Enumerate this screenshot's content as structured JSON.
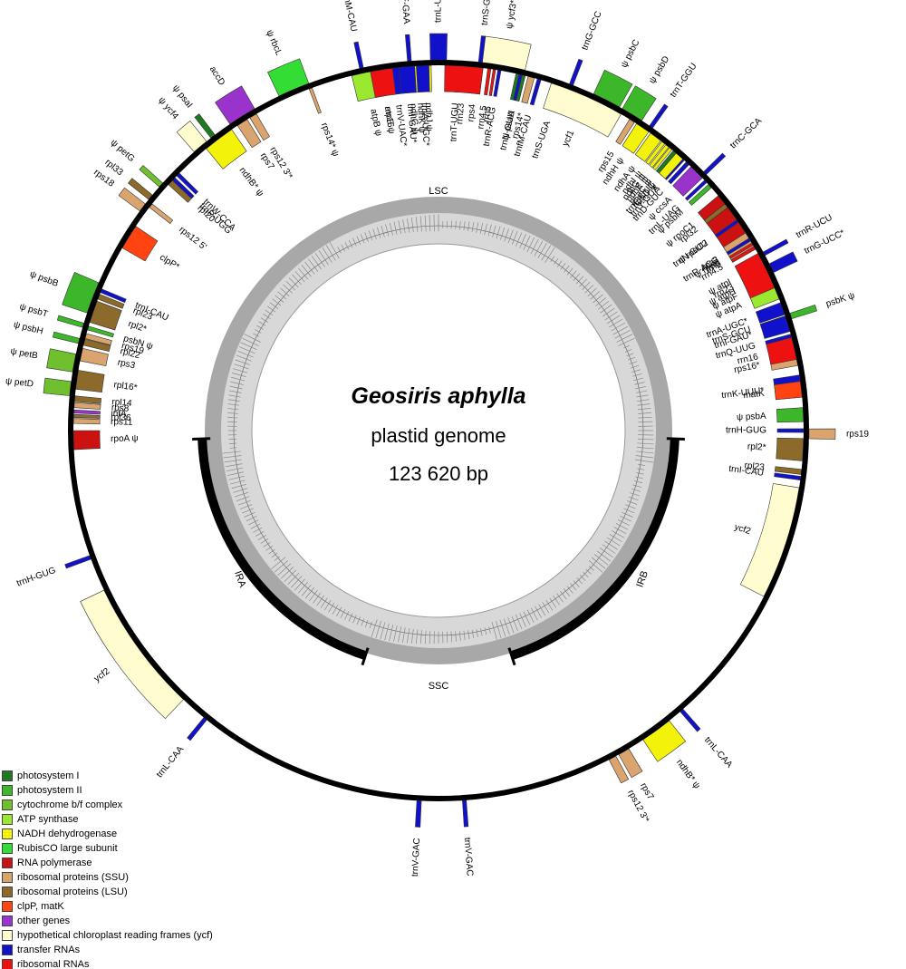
{
  "title": {
    "species": "Geosiris aphylla",
    "line2": "plastid genome",
    "line3": "123 620 bp"
  },
  "regions": {
    "lsc": "LSC",
    "ssc": "SSC",
    "ira": "IRA",
    "irb": "IRB"
  },
  "categories": [
    {
      "id": "ps1",
      "label": "photosystem I",
      "color": "#1f7a1f"
    },
    {
      "id": "ps2",
      "label": "photosystem II",
      "color": "#3cb72a"
    },
    {
      "id": "cyt",
      "label": "cytochrome b/f complex",
      "color": "#6fbf2e"
    },
    {
      "id": "atp",
      "label": "ATP synthase",
      "color": "#9be830"
    },
    {
      "id": "ndh",
      "label": "NADH dehydrogenase",
      "color": "#f2f20a"
    },
    {
      "id": "rbc",
      "label": "RubisCO large subunit",
      "color": "#33dd33"
    },
    {
      "id": "rpo",
      "label": "RNA polymerase",
      "color": "#cc1111"
    },
    {
      "id": "rps",
      "label": "ribosomal proteins (SSU)",
      "color": "#d9a46e"
    },
    {
      "id": "rpl",
      "label": "ribosomal proteins (LSU)",
      "color": "#8b6a2b"
    },
    {
      "id": "clp",
      "label": "clpP, matK",
      "color": "#ff4411"
    },
    {
      "id": "oth",
      "label": "other genes",
      "color": "#9933cc"
    },
    {
      "id": "ycf",
      "label": "hypothetical chloroplast reading frames (ycf)",
      "color": "#fffdd0"
    },
    {
      "id": "trn",
      "label": "transfer RNAs",
      "color": "#1111cc"
    },
    {
      "id": "rrn",
      "label": "ribosomal RNAs",
      "color": "#ee1111"
    }
  ],
  "genes": [
    {
      "name": "trnL-UAA*",
      "cat": "trn",
      "a": 0,
      "w": 2.5,
      "side": "out"
    },
    {
      "name": "trnF-GAA",
      "cat": "trn",
      "a": -4.5,
      "w": 0.6,
      "side": "out"
    },
    {
      "name": "trnM-CAU",
      "cat": "trn",
      "a": -12,
      "w": 0.6,
      "side": "out"
    },
    {
      "name": "ψ rbcL",
      "cat": "rbc",
      "a": -23,
      "w": 5,
      "side": "out"
    },
    {
      "name": "accD",
      "cat": "oth",
      "a": -32,
      "w": 4.5,
      "side": "out"
    },
    {
      "name": "ψ psaI",
      "cat": "ps1",
      "a": -37.5,
      "w": 0.8,
      "side": "out"
    },
    {
      "name": "ψ ycf4",
      "cat": "ycf",
      "a": -40,
      "w": 2.5,
      "side": "out"
    },
    {
      "name": "ψ petG",
      "cat": "cyt",
      "a": -48.5,
      "w": 0.8,
      "side": "out"
    },
    {
      "name": "rpl33",
      "cat": "rpl",
      "a": -51,
      "w": 0.9,
      "side": "out"
    },
    {
      "name": "rps18",
      "cat": "rps",
      "a": -53,
      "w": 1.4,
      "side": "out"
    },
    {
      "name": "ψ psbB",
      "cat": "ps2",
      "a": -69,
      "w": 5,
      "side": "out"
    },
    {
      "name": "ψ psbT",
      "cat": "ps2",
      "a": -73.5,
      "w": 0.7,
      "side": "out"
    },
    {
      "name": "ψ psbH",
      "cat": "ps2",
      "a": -76,
      "w": 0.8,
      "side": "out"
    },
    {
      "name": "ψ petB",
      "cat": "cyt",
      "a": -79.5,
      "w": 2.8,
      "side": "out"
    },
    {
      "name": "ψ petD",
      "cat": "cyt",
      "a": -83.5,
      "w": 2.2,
      "side": "out"
    },
    {
      "name": "trnH-GUG",
      "cat": "trn",
      "a": -110,
      "w": 0.6,
      "side": "out"
    },
    {
      "name": "ycf2",
      "cat": "ycf",
      "a": -126,
      "w": 21,
      "side": "out"
    },
    {
      "name": "trnL-CAA",
      "cat": "trn",
      "a": -141,
      "w": 0.6,
      "side": "out"
    },
    {
      "name": "trnV-GAC",
      "cat": "trn",
      "a": -177,
      "w": 0.7,
      "side": "out"
    },
    {
      "name": "ψ ycf3*",
      "cat": "ycf",
      "a": 10,
      "w": 7,
      "side": "out"
    },
    {
      "name": "trnS-GGA",
      "cat": "trn",
      "a": 6.5,
      "w": 0.6,
      "side": "out"
    },
    {
      "name": "trnG-GCC",
      "cat": "trn",
      "a": 21,
      "w": 0.6,
      "side": "out"
    },
    {
      "name": "ψ psbC",
      "cat": "ps2",
      "a": 27,
      "w": 4.5,
      "side": "out"
    },
    {
      "name": "ψ psbD",
      "cat": "ps2",
      "a": 31.5,
      "w": 3.5,
      "side": "out"
    },
    {
      "name": "trnT-GGU",
      "cat": "trn",
      "a": 35,
      "w": 0.6,
      "side": "out"
    },
    {
      "name": "trnC-GCA",
      "cat": "trn",
      "a": 46,
      "w": 0.6,
      "side": "out"
    },
    {
      "name": "trnR-UCU",
      "cat": "trn",
      "a": 61.5,
      "w": 0.6,
      "side": "out"
    },
    {
      "name": "trnG-UCC*",
      "cat": "trn",
      "a": 64,
      "w": 1.5,
      "side": "out"
    },
    {
      "name": "psbK ψ",
      "cat": "ps2",
      "a": 72,
      "w": 0.9,
      "side": "out"
    },
    {
      "name": "rps19",
      "cat": "rps",
      "a": 90.5,
      "w": 1.5,
      "side": "out"
    },
    {
      "name": "trnL-CAA",
      "cat": "trn",
      "a": 139,
      "w": 0.6,
      "side": "out"
    },
    {
      "name": "ndhB* ψ",
      "cat": "ndh",
      "a": 144,
      "w": 5,
      "side": "out"
    },
    {
      "name": "rps7",
      "cat": "rps",
      "a": 150,
      "w": 1.8,
      "side": "out"
    },
    {
      "name": "rps12 3'*",
      "cat": "rps",
      "a": 152,
      "w": 1.2,
      "side": "out"
    },
    {
      "name": "trnV-GAC",
      "cat": "trn",
      "a": 176,
      "w": 0.6,
      "side": "out"
    },
    {
      "name": "trnT-UGU",
      "cat": "trn",
      "a": 3,
      "w": 0.6,
      "side": "in"
    },
    {
      "name": "rps4",
      "cat": "rps",
      "a": 6,
      "w": 2,
      "side": "in"
    },
    {
      "name": "atpB ψ",
      "cat": "atp",
      "a": -11.5,
      "w": 4.5,
      "side": "in"
    },
    {
      "name": "atpE ψ",
      "cat": "atp",
      "a": -9,
      "w": 1.5,
      "side": "in"
    },
    {
      "name": "trnV-UAC*",
      "cat": "trn",
      "a": -7,
      "w": 1.5,
      "side": "in"
    },
    {
      "name": "ndhC ψ",
      "cat": "ndh",
      "a": -4.5,
      "w": 1.3,
      "side": "in"
    },
    {
      "name": "ndhK ψ",
      "cat": "ndh",
      "a": -3.2,
      "w": 1.3,
      "side": "in"
    },
    {
      "name": "ndhJ ψ",
      "cat": "ndh",
      "a": -1.8,
      "w": 1.3,
      "side": "in"
    },
    {
      "name": "rps14* ψ",
      "cat": "rps",
      "a": -20.5,
      "w": 0.5,
      "side": "in"
    },
    {
      "name": "ψ psaA",
      "cat": "ps1",
      "a": 13,
      "w": 1.5,
      "side": "in"
    },
    {
      "name": "rps14*",
      "cat": "rps",
      "a": 14.7,
      "w": 1,
      "side": "in"
    },
    {
      "name": "trnfM-CAU",
      "cat": "trn",
      "a": 16,
      "w": 0.6,
      "side": "in"
    },
    {
      "name": "trnS-UGA",
      "cat": "trn",
      "a": 19.5,
      "w": 0.6,
      "side": "in"
    },
    {
      "name": "ψ rpoB",
      "cat": "rpo",
      "a": 59,
      "w": 2,
      "side": "in"
    },
    {
      "name": "ψ rpoC2",
      "cat": "rpo",
      "a": 55,
      "w": 5.5,
      "side": "in"
    },
    {
      "name": "ψ rpoC1",
      "cat": "rpo",
      "a": 51,
      "w": 2,
      "side": "in"
    },
    {
      "name": "trnE-UUC",
      "cat": "trn",
      "a": 41,
      "w": 0.6,
      "side": "in"
    },
    {
      "name": "trnY-GUA",
      "cat": "trn",
      "a": 42,
      "w": 0.6,
      "side": "in"
    },
    {
      "name": "trnD-GUC",
      "cat": "trn",
      "a": 43,
      "w": 0.6,
      "side": "in"
    },
    {
      "name": "ψ psbM",
      "cat": "ps2",
      "a": 48,
      "w": 0.7,
      "side": "in"
    },
    {
      "name": "rps2",
      "cat": "rps",
      "a": 58.5,
      "w": 2.5,
      "side": "in"
    },
    {
      "name": "ψ atpI",
      "cat": "atp",
      "a": 63,
      "w": 3,
      "side": "in"
    },
    {
      "name": "ψ atpH",
      "cat": "atp",
      "a": 64.8,
      "w": 0.8,
      "side": "in"
    },
    {
      "name": "ψ atpF",
      "cat": "atp",
      "a": 65.8,
      "w": 1.2,
      "side": "in"
    },
    {
      "name": "ψ atpA",
      "cat": "atp",
      "a": 67.5,
      "w": 2.8,
      "side": "in"
    },
    {
      "name": "trnS-GCU",
      "cat": "trn",
      "a": 72,
      "w": 0.6,
      "side": "in"
    },
    {
      "name": "trnQ-UUG",
      "cat": "trn",
      "a": 75,
      "w": 0.6,
      "side": "in"
    },
    {
      "name": "rps16*",
      "cat": "rps",
      "a": 78.5,
      "w": 2.5,
      "side": "in"
    },
    {
      "name": "trnK-UUU*",
      "cat": "trn",
      "a": 83,
      "w": 3.5,
      "side": "in"
    },
    {
      "name": "matK",
      "cat": "clp",
      "a": 83.5,
      "w": 2.5,
      "side": "in"
    },
    {
      "name": "ψ psbA",
      "cat": "ps2",
      "a": 87.5,
      "w": 2.2,
      "side": "in"
    },
    {
      "name": "trnH-GUG",
      "cat": "trn",
      "a": 90,
      "w": 0.6,
      "side": "in"
    },
    {
      "name": "rpl2*",
      "cat": "rpl",
      "a": 93,
      "w": 3.5,
      "side": "in"
    },
    {
      "name": "rpl23",
      "cat": "rpl",
      "a": 96.5,
      "w": 0.8,
      "side": "in"
    },
    {
      "name": "trnI-CAU",
      "cat": "trn",
      "a": 97.5,
      "w": 0.6,
      "side": "in"
    },
    {
      "name": "ycf2",
      "cat": "ycf",
      "a": 108,
      "w": 18,
      "side": "in"
    },
    {
      "name": "rpl20",
      "cat": "rpl",
      "a": -47,
      "w": 1.4,
      "side": "in"
    },
    {
      "name": "trnW-CCA",
      "cat": "trn",
      "a": -45.5,
      "w": 0.6,
      "side": "in"
    },
    {
      "name": "trnP-UGG",
      "cat": "trn",
      "a": -46.5,
      "w": 0.6,
      "side": "in"
    },
    {
      "name": "rps12 5'",
      "cat": "rps",
      "a": -52,
      "w": 0.7,
      "side": "in"
    },
    {
      "name": "clpP*",
      "cat": "clp",
      "a": -58,
      "w": 4,
      "side": "in"
    },
    {
      "name": "psbN ψ",
      "cat": "ps2",
      "a": -73.7,
      "w": 0.6,
      "side": "in"
    },
    {
      "name": "rpoA ψ",
      "cat": "rpo",
      "a": -91.5,
      "w": 3,
      "side": "in"
    },
    {
      "name": "rps11",
      "cat": "rps",
      "a": -88.5,
      "w": 0.8,
      "side": "in"
    },
    {
      "name": "rpl36",
      "cat": "rpl",
      "a": -87.7,
      "w": 0.5,
      "side": "in"
    },
    {
      "name": "infA",
      "cat": "oth",
      "a": -87,
      "w": 0.5,
      "side": "in"
    },
    {
      "name": "rps8",
      "cat": "rps",
      "a": -86,
      "w": 0.8,
      "side": "in"
    },
    {
      "name": "rpl14",
      "cat": "rpl",
      "a": -85,
      "w": 0.9,
      "side": "in"
    },
    {
      "name": "rpl16*",
      "cat": "rpl",
      "a": -82,
      "w": 3,
      "side": "in"
    },
    {
      "name": "rps3",
      "cat": "rps",
      "a": -78,
      "w": 2,
      "side": "in"
    },
    {
      "name": "rpl22",
      "cat": "rpl",
      "a": -76,
      "w": 1,
      "side": "in"
    },
    {
      "name": "rps19",
      "cat": "rps",
      "a": -75,
      "w": 0.8,
      "side": "in"
    },
    {
      "name": "rpl2*",
      "cat": "rpl",
      "a": -71,
      "w": 3.5,
      "side": "in"
    },
    {
      "name": "rpl23",
      "cat": "rpl",
      "a": -68.5,
      "w": 0.8,
      "side": "in"
    },
    {
      "name": "trnI-CAU",
      "cat": "trn",
      "a": -67.5,
      "w": 0.6,
      "side": "in"
    },
    {
      "name": "ndhB* ψ",
      "cat": "ndh",
      "a": -37,
      "w": 5,
      "side": "in"
    },
    {
      "name": "rps7",
      "cat": "rps",
      "a": -32.5,
      "w": 1.8,
      "side": "in"
    },
    {
      "name": "rps12 3'*",
      "cat": "rps",
      "a": -30.5,
      "w": 1.2,
      "side": "in"
    },
    {
      "name": "rrn16",
      "cat": "rrn",
      "a": -9,
      "w": 3.5,
      "side": "in"
    },
    {
      "name": "trnI-GAU*",
      "cat": "trn",
      "a": -5,
      "w": 2.5,
      "side": "in"
    },
    {
      "name": "trnA-UGC*",
      "cat": "trn",
      "a": -2.5,
      "w": 2,
      "side": "in"
    },
    {
      "name": "rrn23",
      "cat": "rrn",
      "a": 4,
      "w": 6,
      "side": "in"
    },
    {
      "name": "rrn4.5",
      "cat": "rrn",
      "a": 8,
      "w": 0.5,
      "side": "in"
    },
    {
      "name": "rrn5",
      "cat": "rrn",
      "a": 8.8,
      "w": 0.4,
      "side": "in"
    },
    {
      "name": "trnR-ACG",
      "cat": "trn",
      "a": 9.6,
      "w": 0.5,
      "side": "in"
    },
    {
      "name": "trnN-GUU",
      "cat": "trn",
      "a": 13,
      "w": 0.5,
      "side": "in"
    },
    {
      "name": "ycf1",
      "cat": "ycf",
      "a": 24,
      "w": 12,
      "side": "in"
    },
    {
      "name": "rps15",
      "cat": "rps",
      "a": 32,
      "w": 0.9,
      "side": "in"
    },
    {
      "name": "ndhH ψ",
      "cat": "ndh",
      "a": 34,
      "w": 2.3,
      "side": "in"
    },
    {
      "name": "ndhA ψ",
      "cat": "ndh",
      "a": 36.5,
      "w": 2,
      "side": "in"
    },
    {
      "name": "ndhI ψ",
      "cat": "ndh",
      "a": 38,
      "w": 0.6,
      "side": "in"
    },
    {
      "name": "ndhG ψ",
      "cat": "ndh",
      "a": 38.8,
      "w": 0.6,
      "side": "in"
    },
    {
      "name": "ndhE ψ",
      "cat": "ndh",
      "a": 39.5,
      "w": 0.5,
      "side": "in"
    },
    {
      "name": "psaC ψ",
      "cat": "ps1",
      "a": 40.3,
      "w": 0.6,
      "side": "in"
    },
    {
      "name": "ndhD ψ",
      "cat": "ndh",
      "a": 41.3,
      "w": 1.4,
      "side": "in"
    },
    {
      "name": "ψ ccsA",
      "cat": "oth",
      "a": 45,
      "w": 2.5,
      "side": "in"
    },
    {
      "name": "trnL-UAG",
      "cat": "trn",
      "a": 47,
      "w": 0.5,
      "side": "in"
    },
    {
      "name": "rpl32",
      "cat": "rpl",
      "a": 52,
      "w": 0.7,
      "side": "in"
    },
    {
      "name": "trnN-GUU",
      "cat": "trn",
      "a": 55,
      "w": 0.5,
      "side": "in"
    },
    {
      "name": "trnR-ACG",
      "cat": "trn",
      "a": 58.5,
      "w": 0.5,
      "side": "in"
    },
    {
      "name": "rrn5",
      "cat": "rrn",
      "a": 59.3,
      "w": 0.4,
      "side": "in"
    },
    {
      "name": "rrn4.5",
      "cat": "rrn",
      "a": 60,
      "w": 0.5,
      "side": "in"
    },
    {
      "name": "rrn23",
      "cat": "rrn",
      "a": 64,
      "w": 6,
      "side": "in"
    },
    {
      "name": "trnA-UGC*",
      "cat": "trn",
      "a": 70.5,
      "w": 2,
      "side": "in"
    },
    {
      "name": "trnI-GAU*",
      "cat": "trn",
      "a": 73,
      "w": 2.5,
      "side": "in"
    },
    {
      "name": "rrn16",
      "cat": "rrn",
      "a": 77,
      "w": 3.5,
      "side": "in"
    }
  ]
}
